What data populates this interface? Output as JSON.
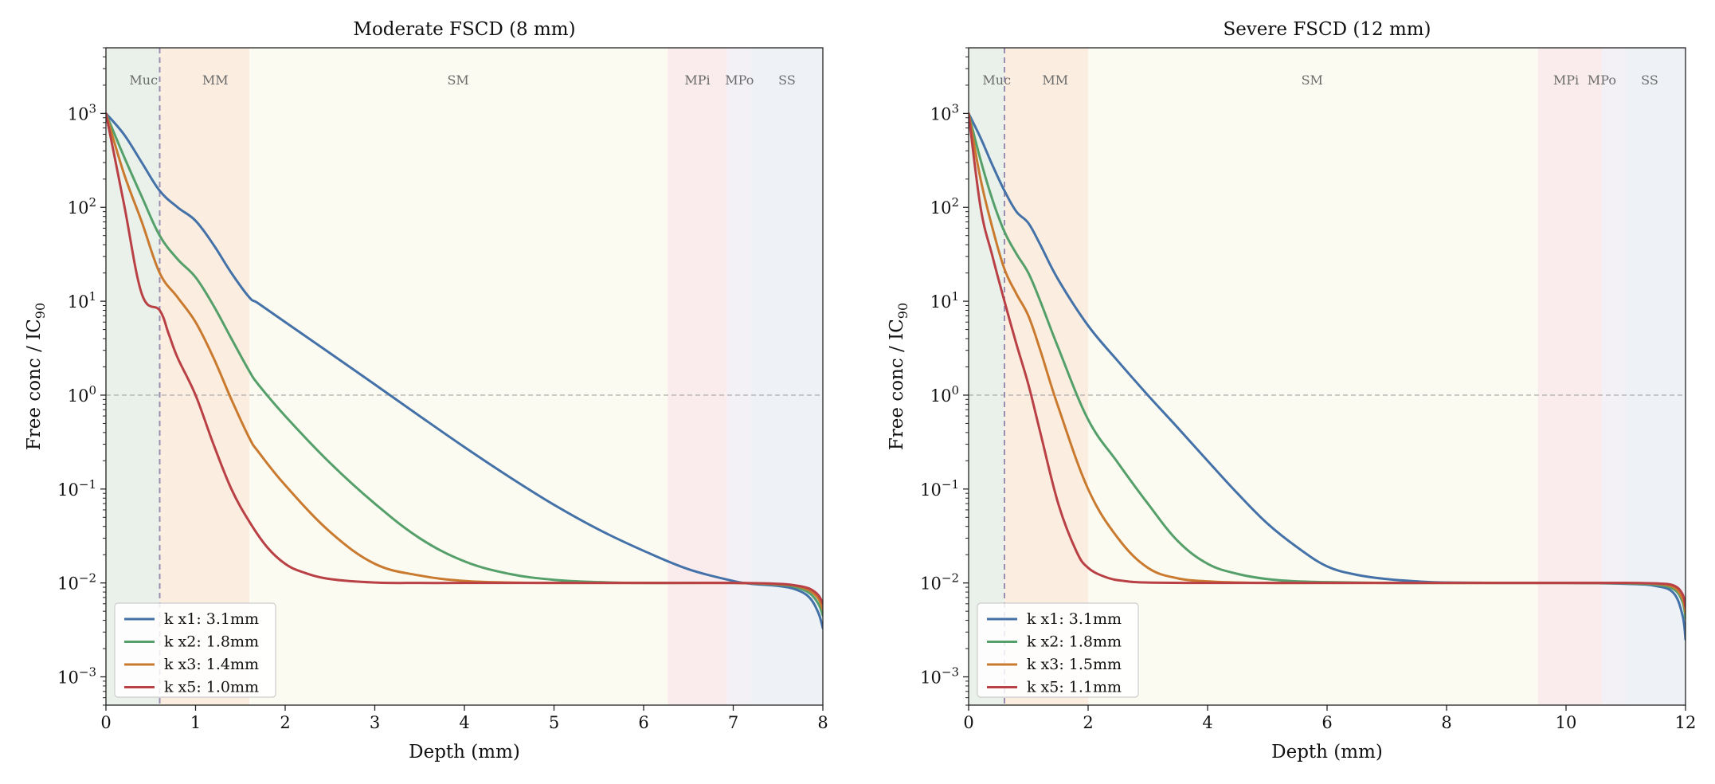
{
  "colors": {
    "k_x1": "#4472a8",
    "k_x2": "#55a06a",
    "k_x3": "#c97a2f",
    "k_x5": "#b94045",
    "grid_threshold": "#b0b0b0",
    "mucosa_boundary": "#9a8db0",
    "band_muc": "#e9f1ea",
    "band_mm": "#fbeee0",
    "band_sm": "#fbfbf1",
    "band_mpi": "#faecec",
    "band_mpo": "#f4f1f6",
    "band_ss": "#eef2f7"
  },
  "chart_data": [
    {
      "type": "line",
      "title": "Moderate FSCD (8 mm)",
      "xlabel": "Depth (mm)",
      "ylabel": "Free conc / IC",
      "ylabel_sub": "90",
      "yscale": "log",
      "xlim": [
        0,
        8
      ],
      "ylim": [
        0.0005,
        5000
      ],
      "xticks": [
        0,
        1,
        2,
        3,
        4,
        5,
        6,
        7,
        8
      ],
      "yticks": [
        {
          "value": 0.001,
          "base": "10",
          "exp": "−3"
        },
        {
          "value": 0.01,
          "base": "10",
          "exp": "−2"
        },
        {
          "value": 0.1,
          "base": "10",
          "exp": "−1"
        },
        {
          "value": 1,
          "base": "10",
          "exp": "0"
        },
        {
          "value": 10,
          "base": "10",
          "exp": "1"
        },
        {
          "value": 100,
          "base": "10",
          "exp": "2"
        },
        {
          "value": 1000,
          "base": "10",
          "exp": "3"
        }
      ],
      "hline": 1,
      "vline": 0.6,
      "regions": [
        {
          "label": "Muc",
          "from": 0,
          "to": 0.6,
          "color_key": "band_muc"
        },
        {
          "label": "MM",
          "from": 0.6,
          "to": 1.6,
          "color_key": "band_mm"
        },
        {
          "label": "SM",
          "from": 1.6,
          "to": 6.27,
          "color_key": "band_sm"
        },
        {
          "label": "MPi",
          "from": 6.27,
          "to": 6.93,
          "color_key": "band_mpi"
        },
        {
          "label": "MPo",
          "from": 6.93,
          "to": 7.2,
          "color_key": "band_mpo"
        },
        {
          "label": "SS",
          "from": 7.2,
          "to": 8,
          "color_key": "band_ss"
        }
      ],
      "region_labels": [
        {
          "label": "Muc",
          "x": 0.42
        },
        {
          "label": "MM",
          "x": 1.22
        },
        {
          "label": "SM",
          "x": 3.93
        },
        {
          "label": "MPi",
          "x": 6.6
        },
        {
          "label": "MPo",
          "x": 7.07
        },
        {
          "label": "SS",
          "x": 7.6
        }
      ],
      "legend": "lower-left",
      "series": [
        {
          "name": "k x1: 3.1mm",
          "color_key": "k_x1",
          "x": [
            0,
            0.2,
            0.4,
            0.6,
            0.8,
            1.0,
            1.2,
            1.4,
            1.6,
            1.7,
            2.0,
            2.5,
            3.0,
            3.5,
            4.0,
            4.5,
            5.0,
            5.5,
            6.0,
            6.5,
            7.0,
            7.2,
            7.5,
            7.7,
            7.85,
            7.95,
            8.0
          ],
          "y": [
            1000,
            600,
            300,
            150,
            100,
            72,
            40,
            20,
            11,
            9.5,
            6,
            2.8,
            1.3,
            0.6,
            0.28,
            0.135,
            0.068,
            0.037,
            0.022,
            0.014,
            0.0105,
            0.0098,
            0.0093,
            0.0085,
            0.007,
            0.0048,
            0.0033
          ]
        },
        {
          "name": "k x2: 1.8mm",
          "color_key": "k_x2",
          "x": [
            0,
            0.2,
            0.4,
            0.6,
            0.8,
            1.0,
            1.2,
            1.4,
            1.6,
            1.7,
            2.0,
            2.5,
            3.0,
            3.5,
            4.0,
            4.5,
            5.0,
            5.5,
            6.0,
            7.0,
            7.5,
            7.7,
            7.85,
            7.95,
            8.0
          ],
          "y": [
            1000,
            350,
            130,
            50,
            28,
            18,
            9,
            4,
            1.8,
            1.3,
            0.6,
            0.19,
            0.07,
            0.03,
            0.017,
            0.0125,
            0.0108,
            0.0102,
            0.01,
            0.01,
            0.0096,
            0.009,
            0.0078,
            0.006,
            0.0045
          ]
        },
        {
          "name": "k x3: 1.4mm",
          "color_key": "k_x3",
          "x": [
            0,
            0.2,
            0.4,
            0.6,
            0.8,
            1.0,
            1.2,
            1.4,
            1.6,
            1.7,
            2.0,
            2.5,
            3.0,
            3.5,
            4.0,
            4.5,
            5.0,
            6.0,
            7.0,
            7.5,
            7.7,
            7.85,
            7.95,
            8.0
          ],
          "y": [
            1000,
            230,
            70,
            20,
            11,
            6,
            2.5,
            0.9,
            0.35,
            0.25,
            0.11,
            0.035,
            0.016,
            0.012,
            0.0105,
            0.0101,
            0.01,
            0.01,
            0.01,
            0.0097,
            0.0093,
            0.0083,
            0.0068,
            0.0052
          ]
        },
        {
          "name": "k x5: 1.0mm",
          "color_key": "k_x5",
          "x": [
            0,
            0.2,
            0.4,
            0.6,
            0.7,
            0.8,
            1.0,
            1.2,
            1.4,
            1.6,
            1.8,
            2.0,
            2.2,
            2.5,
            3.0,
            3.5,
            4.0,
            5.0,
            6.0,
            7.0,
            7.5,
            7.7,
            7.85,
            7.95,
            8.0
          ],
          "y": [
            1000,
            110,
            12,
            8,
            4.5,
            2.5,
            1.0,
            0.3,
            0.1,
            0.045,
            0.024,
            0.016,
            0.013,
            0.011,
            0.0101,
            0.01,
            0.01,
            0.01,
            0.01,
            0.01,
            0.0098,
            0.0094,
            0.0087,
            0.0074,
            0.006
          ]
        }
      ]
    },
    {
      "type": "line",
      "title": "Severe FSCD (12 mm)",
      "xlabel": "Depth (mm)",
      "ylabel": "Free conc / IC",
      "ylabel_sub": "90",
      "yscale": "log",
      "xlim": [
        0,
        12
      ],
      "ylim": [
        0.0005,
        5000
      ],
      "xticks": [
        0,
        2,
        4,
        6,
        8,
        10,
        12
      ],
      "yticks": [
        {
          "value": 0.001,
          "base": "10",
          "exp": "−3"
        },
        {
          "value": 0.01,
          "base": "10",
          "exp": "−2"
        },
        {
          "value": 0.1,
          "base": "10",
          "exp": "−1"
        },
        {
          "value": 1,
          "base": "10",
          "exp": "0"
        },
        {
          "value": 10,
          "base": "10",
          "exp": "1"
        },
        {
          "value": 100,
          "base": "10",
          "exp": "2"
        },
        {
          "value": 1000,
          "base": "10",
          "exp": "3"
        }
      ],
      "hline": 1,
      "vline": 0.6,
      "regions": [
        {
          "label": "Muc",
          "from": 0,
          "to": 0.6,
          "color_key": "band_muc"
        },
        {
          "label": "MM",
          "from": 0.6,
          "to": 2.0,
          "color_key": "band_mm"
        },
        {
          "label": "SM",
          "from": 2.0,
          "to": 9.53,
          "color_key": "band_sm"
        },
        {
          "label": "MPi",
          "from": 9.53,
          "to": 10.6,
          "color_key": "band_mpi"
        },
        {
          "label": "MPo",
          "from": 10.6,
          "to": 11.0,
          "color_key": "band_mpo"
        },
        {
          "label": "SS",
          "from": 11.0,
          "to": 12,
          "color_key": "band_ss"
        }
      ],
      "region_labels": [
        {
          "label": "Muc",
          "x": 0.47
        },
        {
          "label": "MM",
          "x": 1.45
        },
        {
          "label": "SM",
          "x": 5.75
        },
        {
          "label": "MPi",
          "x": 10.0
        },
        {
          "label": "MPo",
          "x": 10.6
        },
        {
          "label": "SS",
          "x": 11.4
        }
      ],
      "legend": "lower-left",
      "series": [
        {
          "name": "k x1: 3.1mm",
          "color_key": "k_x1",
          "x": [
            0,
            0.2,
            0.4,
            0.6,
            0.8,
            1.0,
            1.2,
            1.5,
            2.0,
            2.5,
            3.0,
            3.5,
            4.0,
            4.5,
            5.0,
            5.5,
            6.0,
            6.5,
            7.0,
            7.5,
            8.0,
            9.0,
            10.0,
            11.0,
            11.5,
            11.8,
            11.95,
            12.0
          ],
          "y": [
            1000,
            550,
            280,
            150,
            90,
            68,
            40,
            17,
            5.5,
            2.3,
            1.0,
            0.45,
            0.2,
            0.09,
            0.043,
            0.024,
            0.015,
            0.0122,
            0.011,
            0.0104,
            0.0101,
            0.01,
            0.01,
            0.0098,
            0.0093,
            0.0078,
            0.0045,
            0.0025
          ]
        },
        {
          "name": "k x2: 1.8mm",
          "color_key": "k_x2",
          "x": [
            0,
            0.2,
            0.4,
            0.6,
            0.8,
            1.0,
            1.2,
            1.5,
            2.0,
            2.5,
            3.0,
            3.5,
            4.0,
            4.5,
            5.0,
            5.5,
            6.0,
            7.0,
            8.0,
            10.0,
            11.0,
            11.5,
            11.8,
            11.95,
            12.0
          ],
          "y": [
            1000,
            320,
            120,
            55,
            32,
            20,
            10,
            3.2,
            0.55,
            0.19,
            0.07,
            0.028,
            0.016,
            0.0125,
            0.011,
            0.0104,
            0.0102,
            0.01,
            0.01,
            0.01,
            0.0099,
            0.0096,
            0.0086,
            0.0063,
            0.0042
          ]
        },
        {
          "name": "k x3: 1.5mm",
          "color_key": "k_x3",
          "x": [
            0,
            0.2,
            0.4,
            0.6,
            0.8,
            1.0,
            1.2,
            1.5,
            2.0,
            2.5,
            3.0,
            3.5,
            4.0,
            4.5,
            5.0,
            6.0,
            8.0,
            10.0,
            11.0,
            11.5,
            11.8,
            11.95,
            12.0
          ],
          "y": [
            1000,
            200,
            60,
            22,
            12,
            7,
            3,
            0.75,
            0.1,
            0.03,
            0.0145,
            0.0112,
            0.0104,
            0.0101,
            0.01,
            0.01,
            0.01,
            0.01,
            0.01,
            0.0098,
            0.009,
            0.0068,
            0.0048
          ]
        },
        {
          "name": "k x5: 1.1mm",
          "color_key": "k_x5",
          "x": [
            0,
            0.2,
            0.4,
            0.6,
            0.8,
            1.0,
            1.2,
            1.5,
            1.8,
            2.0,
            2.3,
            2.6,
            3.0,
            4.0,
            6.0,
            8.0,
            10.0,
            11.0,
            11.5,
            11.8,
            11.95,
            12.0
          ],
          "y": [
            1000,
            100,
            30,
            10,
            3.5,
            1.3,
            0.4,
            0.07,
            0.022,
            0.0145,
            0.0115,
            0.0105,
            0.0101,
            0.01,
            0.01,
            0.01,
            0.01,
            0.01,
            0.0099,
            0.0094,
            0.0076,
            0.0055
          ]
        }
      ]
    }
  ]
}
